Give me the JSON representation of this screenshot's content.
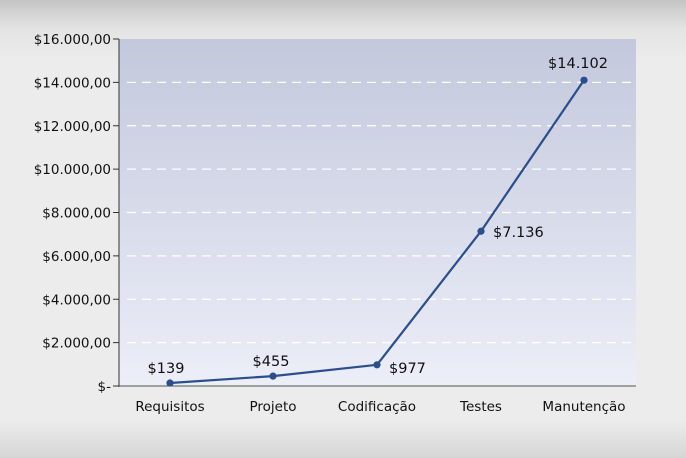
{
  "chart_data": {
    "type": "line",
    "categories": [
      "Requisitos",
      "Projeto",
      "Codificação",
      "Testes",
      "Manutenção"
    ],
    "series": [
      {
        "values": [
          139,
          455,
          977,
          7136,
          14102
        ]
      }
    ],
    "data_labels": [
      "$139",
      "$455",
      "$977",
      "$7.136",
      "$14.102"
    ],
    "y_ticks": [
      {
        "value": 0,
        "label": "$-"
      },
      {
        "value": 2000,
        "label": "$2.000,00"
      },
      {
        "value": 4000,
        "label": "$4.000,00"
      },
      {
        "value": 6000,
        "label": "$6.000,00"
      },
      {
        "value": 8000,
        "label": "$8.000,00"
      },
      {
        "value": 10000,
        "label": "$10.000,00"
      },
      {
        "value": 12000,
        "label": "$12.000,00"
      },
      {
        "value": 14000,
        "label": "$14.000,00"
      },
      {
        "value": 16000,
        "label": "$16.000,00"
      }
    ],
    "ylim": [
      0,
      16000
    ],
    "grid": "horizontal dashed",
    "colors": {
      "line": "#2b4e8c",
      "plot_top": "#c3c8dc",
      "plot_bottom": "#eceef8",
      "grid": "#ffffff"
    }
  }
}
